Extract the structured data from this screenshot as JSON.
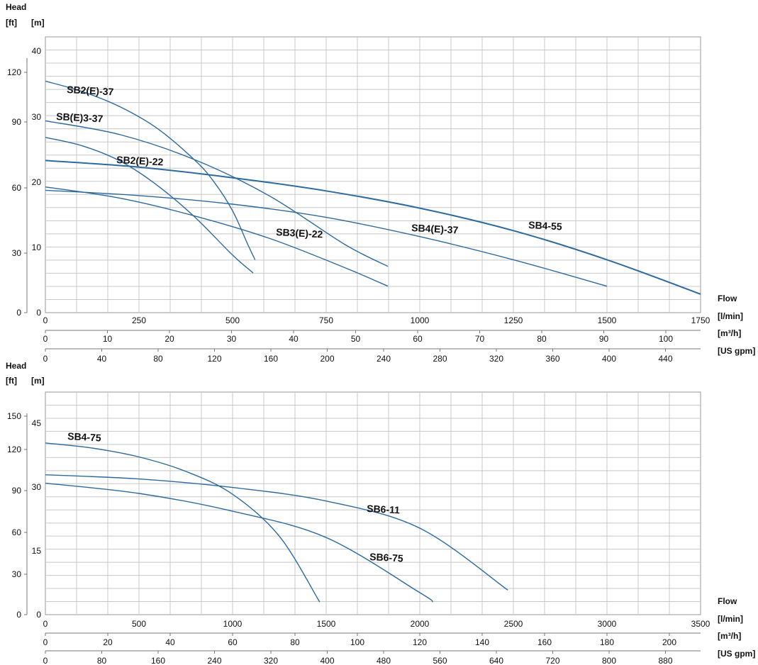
{
  "chart_data": [
    {
      "type": "line",
      "title": "",
      "head_label": "Head",
      "ylabel_ft": "[ft]",
      "ylabel_m": "[m]",
      "flow_label": "Flow",
      "x_units": [
        "[l/min]",
        "[m³/h]",
        "[US gpm]"
      ],
      "xlim_lmin": [
        0,
        1750
      ],
      "ylim_m": [
        0,
        42
      ],
      "grid": true,
      "ticks_lmin": [
        "0",
        "250",
        "500",
        "750",
        "1000",
        "1250",
        "1500",
        "1750"
      ],
      "ticks_m3h": [
        "0",
        "10",
        "20",
        "30",
        "40",
        "50",
        "60",
        "70",
        "80",
        "90",
        "100"
      ],
      "ticks_gpm": [
        "0",
        "40",
        "80",
        "120",
        "160",
        "200",
        "240",
        "280",
        "320",
        "360",
        "400",
        "440"
      ],
      "yticks_m": [
        "0",
        "10",
        "20",
        "30",
        "40"
      ],
      "yticks_ft": [
        "0",
        "30",
        "60",
        "90",
        "120"
      ],
      "series": [
        {
          "name": "SB2(E)-37",
          "x": [
            0,
            100,
            200,
            300,
            400,
            450,
            500,
            540,
            560
          ],
          "y": [
            35,
            33.4,
            31.1,
            27.8,
            23,
            19.8,
            15.4,
            10.4,
            8
          ]
        },
        {
          "name": "SB(E)3-37",
          "x": [
            0,
            200,
            400,
            600,
            800,
            915
          ],
          "y": [
            29,
            26.9,
            23.1,
            17.6,
            10.3,
            7
          ]
        },
        {
          "name": "SB2(E)-22",
          "x": [
            0,
            100,
            200,
            300,
            400,
            500,
            555
          ],
          "y": [
            26.5,
            25.2,
            22.9,
            19.2,
            14.4,
            8.7,
            6
          ]
        },
        {
          "name": "SB3(E)-22",
          "x": [
            0,
            200,
            400,
            600,
            800,
            915
          ],
          "y": [
            19,
            17.3,
            14.6,
            11.2,
            6.8,
            4
          ]
        },
        {
          "name": "SB4(E)-37",
          "x": [
            0,
            250,
            500,
            750,
            1000,
            1250,
            1500
          ],
          "y": [
            18.5,
            17.7,
            16.4,
            14.4,
            11.5,
            8,
            4
          ]
        },
        {
          "name": "SB4-55",
          "x": [
            0,
            250,
            500,
            750,
            1000,
            1250,
            1500,
            1750
          ],
          "y": [
            23,
            22,
            20.4,
            18.4,
            15.8,
            12.4,
            8,
            2.8
          ]
        }
      ]
    },
    {
      "type": "line",
      "title": "",
      "head_label": "Head",
      "ylabel_ft": "[ft]",
      "ylabel_m": "[m]",
      "flow_label": "Flow",
      "x_units": [
        "[l/min]",
        "[m³/h]",
        "[US gpm]"
      ],
      "xlim_lmin": [
        0,
        3500
      ],
      "ylim_m": [
        0,
        52
      ],
      "grid": true,
      "ticks_lmin": [
        "0",
        "500",
        "1000",
        "1500",
        "2000",
        "2500",
        "3000",
        "3500"
      ],
      "ticks_m3h": [
        "0",
        "20",
        "40",
        "60",
        "80",
        "100",
        "120",
        "140",
        "160",
        "180",
        "200"
      ],
      "ticks_gpm": [
        "0",
        "80",
        "160",
        "240",
        "320",
        "400",
        "480",
        "560",
        "640",
        "720",
        "800",
        "880"
      ],
      "yticks_m": [
        "0",
        "15",
        "30",
        "45"
      ],
      "yticks_ft": [
        "0",
        "30",
        "60",
        "90",
        "120",
        "150"
      ],
      "series": [
        {
          "name": "SB4-75",
          "x": [
            0,
            250,
            500,
            750,
            1000,
            1250,
            1465
          ],
          "y": [
            40.5,
            39.3,
            37.2,
            33.8,
            28.4,
            18.5,
            3
          ]
        },
        {
          "name": "SB6-11",
          "x": [
            0,
            500,
            1000,
            1500,
            2000,
            2470
          ],
          "y": [
            33,
            32,
            30,
            26.8,
            20.4,
            5.8
          ]
        },
        {
          "name": "SB6-75",
          "x": [
            0,
            500,
            1000,
            1500,
            2000,
            2070
          ],
          "y": [
            31,
            28.6,
            24.4,
            18.2,
            5.2,
            3
          ]
        }
      ]
    }
  ]
}
